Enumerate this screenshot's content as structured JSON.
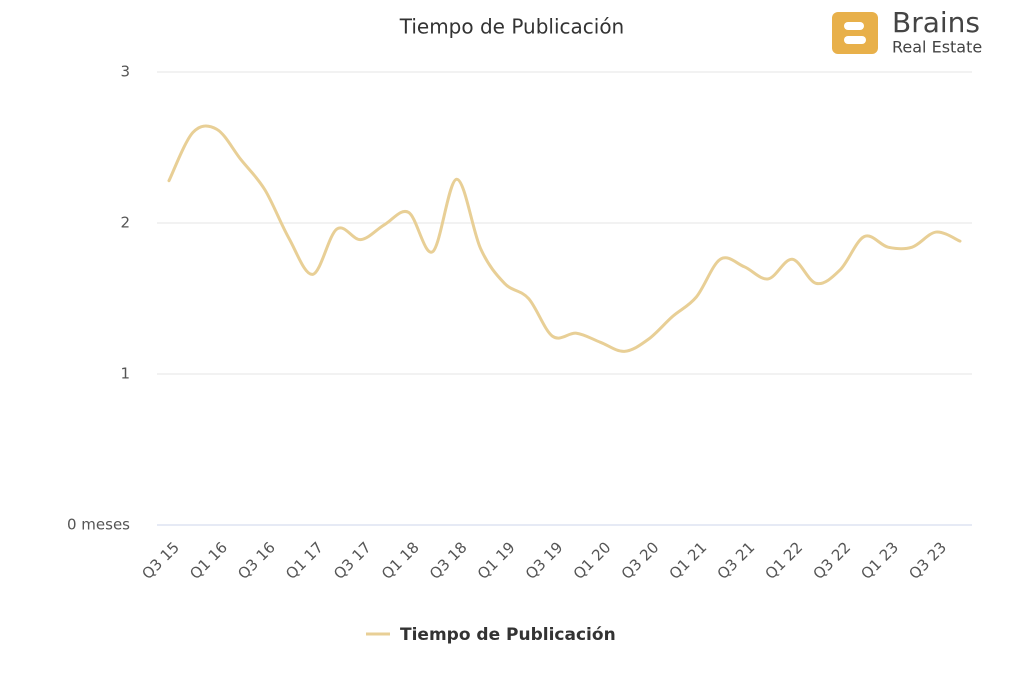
{
  "chart_data": {
    "type": "line",
    "title": "Tiempo de Publicación",
    "logo": {
      "name": "Brains",
      "tagline": "Real Estate"
    },
    "categories": [
      "Q3 15",
      null,
      "Q1 16",
      null,
      "Q3 16",
      null,
      "Q1 17",
      null,
      "Q3 17",
      null,
      "Q1 18",
      null,
      "Q3 18",
      null,
      "Q1 19",
      null,
      "Q3 19",
      null,
      "Q1 20",
      null,
      "Q3 20",
      null,
      "Q1 21",
      null,
      "Q3 21",
      null,
      "Q1 22",
      null,
      "Q3 22",
      null,
      "Q1 23",
      null,
      "Q3 23",
      null
    ],
    "series": [
      {
        "name": "Tiempo de Publicación",
        "color": "#e8cf96",
        "values": [
          2.28,
          2.6,
          2.62,
          2.42,
          2.22,
          1.9,
          1.66,
          1.96,
          1.89,
          1.99,
          2.07,
          1.81,
          2.29,
          1.83,
          1.6,
          1.5,
          1.25,
          1.27,
          1.21,
          1.15,
          1.23,
          1.38,
          1.51,
          1.76,
          1.71,
          1.63,
          1.76,
          1.6,
          1.69,
          1.91,
          1.84,
          1.84,
          1.94,
          1.88
        ]
      }
    ],
    "ylim": [
      0,
      3
    ],
    "yticks": [
      {
        "value": 0,
        "label": "0 meses"
      },
      1,
      2,
      3
    ],
    "grid": true
  }
}
